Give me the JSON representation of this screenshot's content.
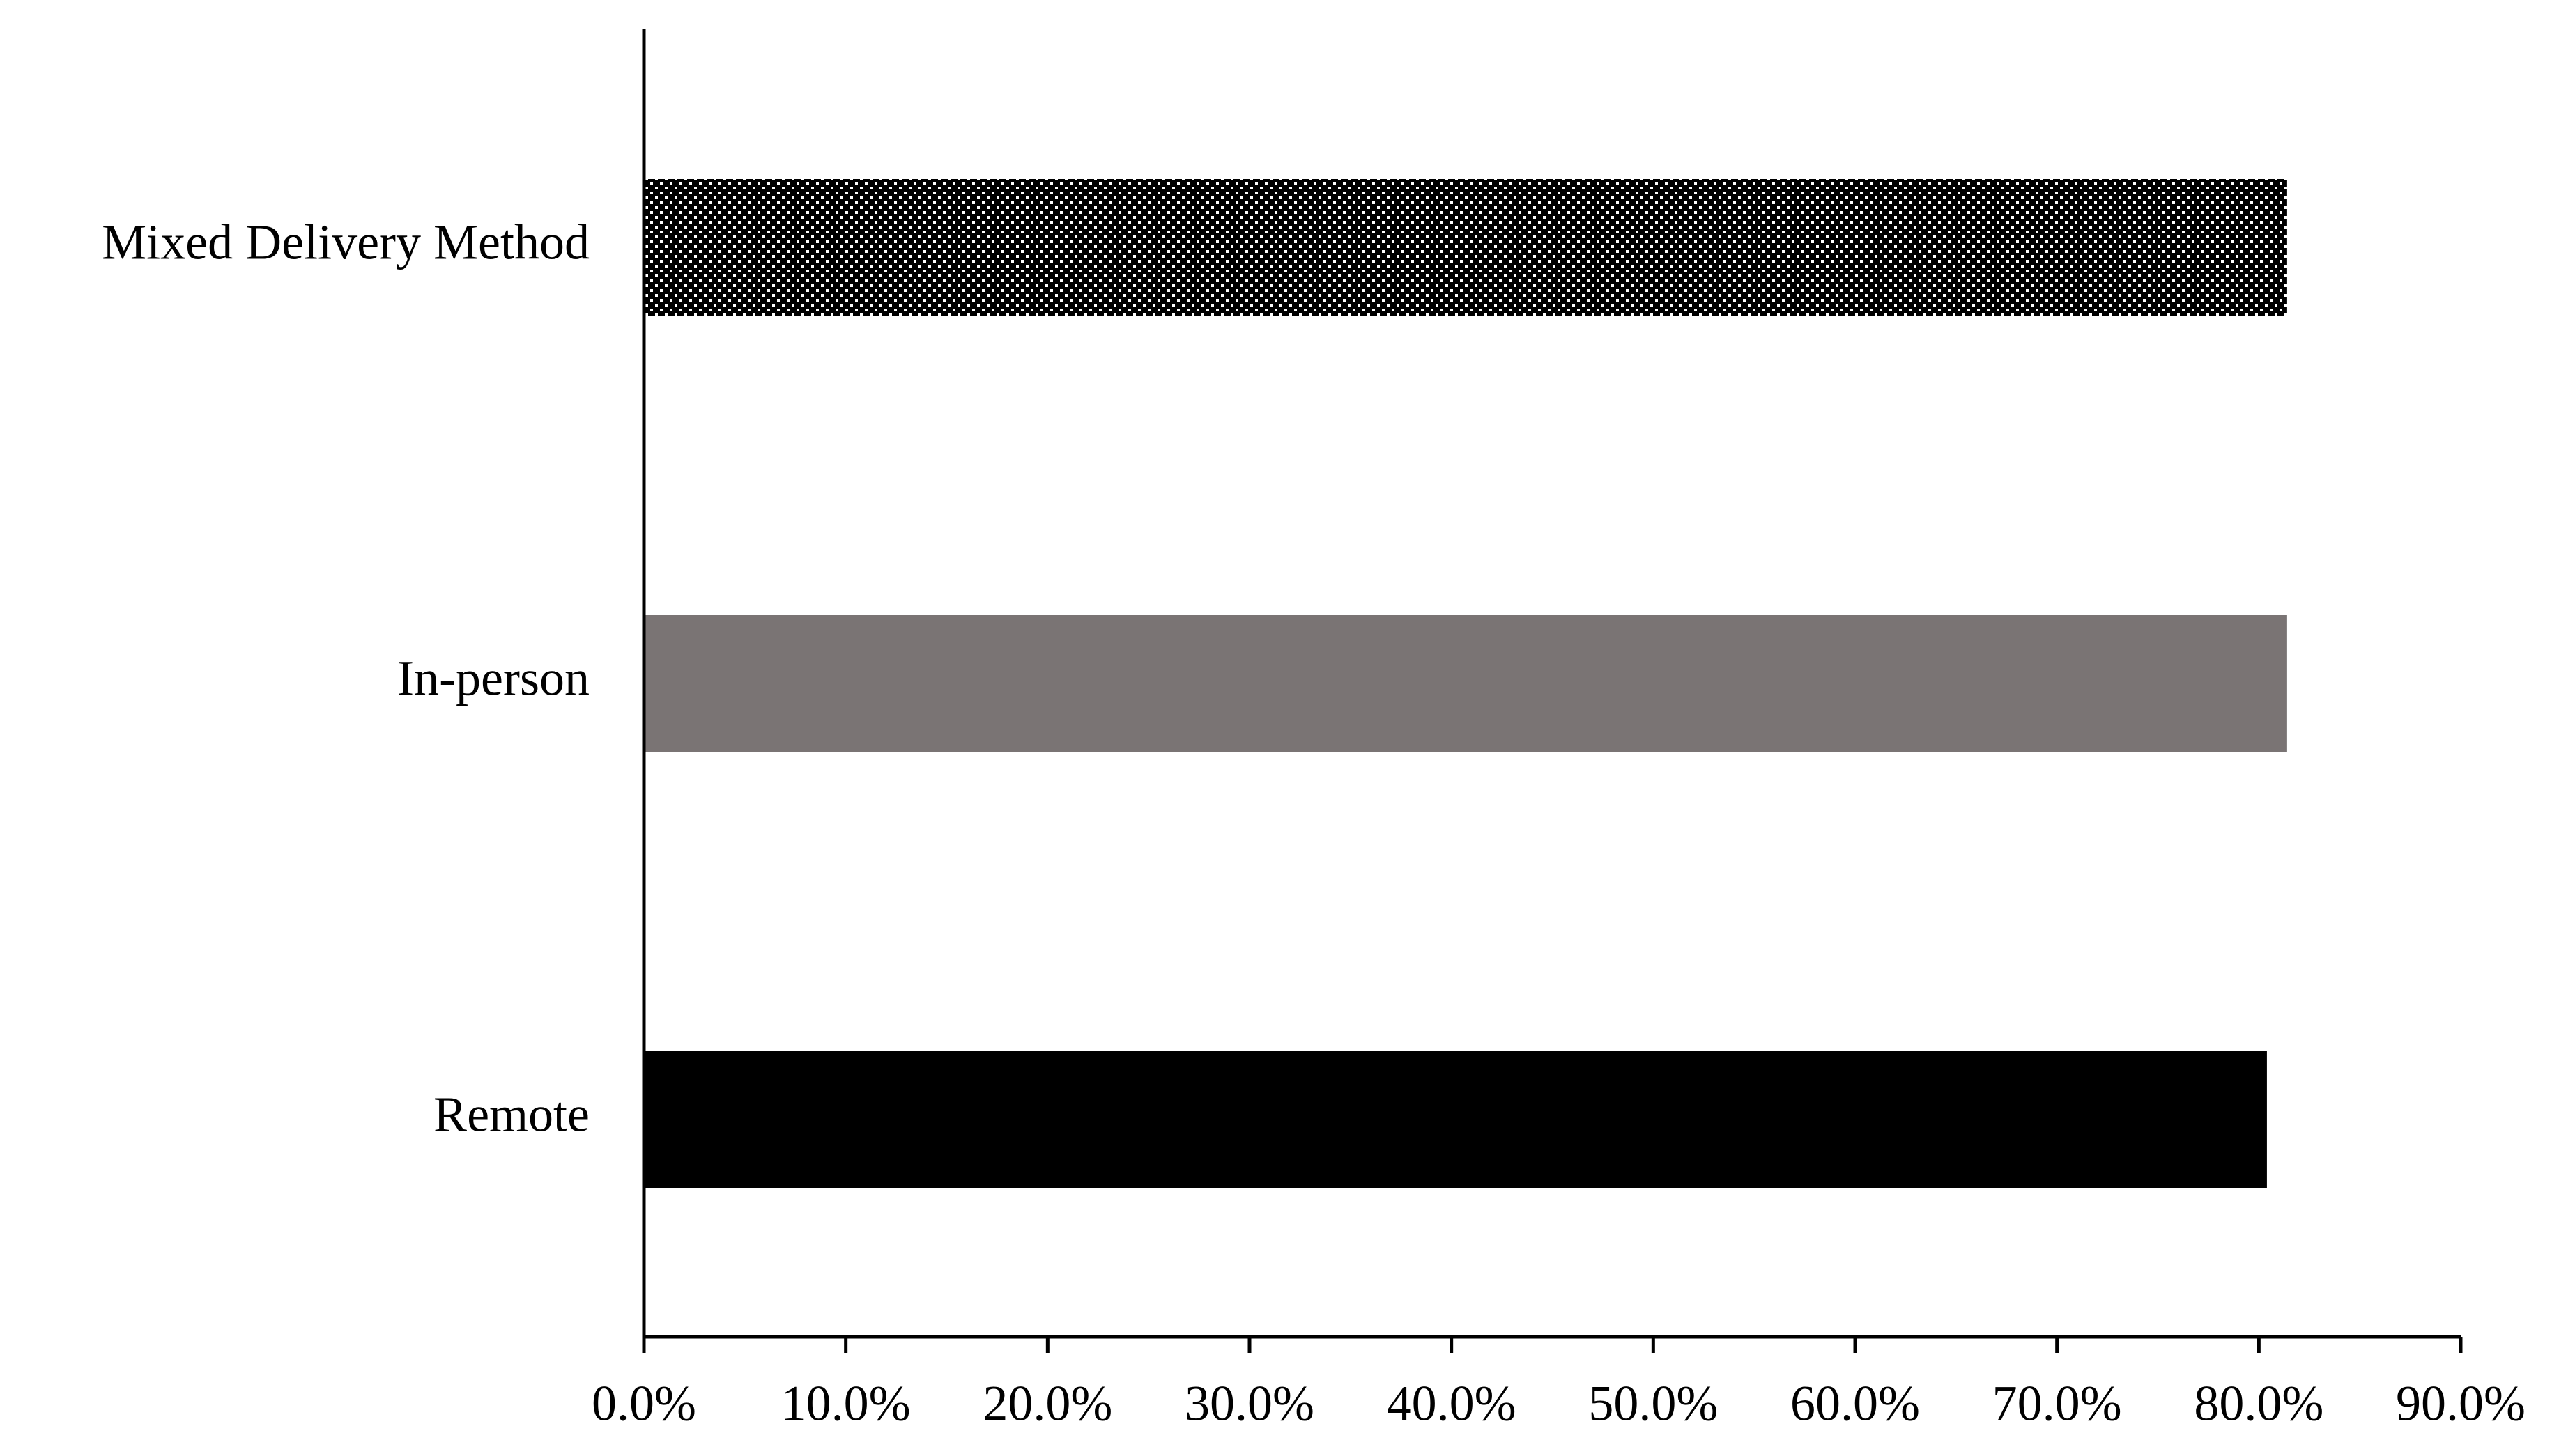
{
  "chart_data": {
    "type": "barh",
    "categories": [
      "Mixed Delivery Method",
      "In-person",
      "Remote"
    ],
    "values": [
      81.4,
      81.4,
      80.4
    ],
    "colors": [
      "#000000",
      "#7a7474",
      "#000000"
    ],
    "patterns": [
      "dots",
      "solid",
      "solid"
    ],
    "xlim": [
      0,
      90
    ],
    "xticks": [
      {
        "value": 0,
        "label": "0.0%"
      },
      {
        "value": 10,
        "label": "10.0%"
      },
      {
        "value": 20,
        "label": "20.0%"
      },
      {
        "value": 30,
        "label": "30.0%"
      },
      {
        "value": 40,
        "label": "40.0%"
      },
      {
        "value": 50,
        "label": "50.0%"
      },
      {
        "value": 60,
        "label": "60.0%"
      },
      {
        "value": 70,
        "label": "70.0%"
      },
      {
        "value": 80,
        "label": "80.0%"
      },
      {
        "value": 90,
        "label": "90.0%"
      }
    ],
    "grid": false
  }
}
